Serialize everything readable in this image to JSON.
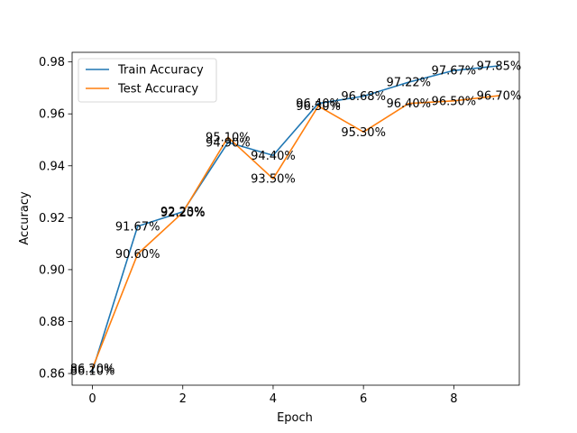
{
  "chart_data": {
    "type": "line",
    "title": "",
    "xlabel": "Epoch",
    "ylabel": "Accuracy",
    "xlim": [
      -0.45,
      9.45
    ],
    "ylim": [
      0.8555,
      0.9837
    ],
    "xticks": [
      0,
      2,
      4,
      6,
      8
    ],
    "yticks": [
      0.86,
      0.88,
      0.9,
      0.92,
      0.94,
      0.96,
      0.98
    ],
    "xtick_labels": [
      "0",
      "2",
      "4",
      "6",
      "8"
    ],
    "ytick_labels": [
      "0.86",
      "0.88",
      "0.90",
      "0.92",
      "0.94",
      "0.96",
      "0.98"
    ],
    "grid": false,
    "legend_position": "top-left",
    "x": [
      0,
      1,
      2,
      3,
      4,
      5,
      6,
      7,
      8,
      9
    ],
    "series": [
      {
        "name": "Train Accuracy",
        "color": "#1f77b4",
        "values": [
          0.861,
          0.9167,
          0.9223,
          0.949,
          0.944,
          0.964,
          0.9668,
          0.9722,
          0.9767,
          0.9785
        ],
        "labels": [
          "86.10%",
          "91.67%",
          "92.23%",
          "94.90%",
          "94.40%",
          "96.40%",
          "96.68%",
          "97.22%",
          "97.67%",
          "97.85%"
        ]
      },
      {
        "name": "Test Accuracy",
        "color": "#ff7f0e",
        "values": [
          0.862,
          0.906,
          0.922,
          0.951,
          0.935,
          0.963,
          0.953,
          0.964,
          0.965,
          0.967
        ],
        "labels": [
          "86.20%",
          "90.60%",
          "92.20%",
          "95.10%",
          "93.50%",
          "96.30%",
          "95.30%",
          "96.40%",
          "96.50%",
          "96.70%"
        ]
      }
    ]
  }
}
